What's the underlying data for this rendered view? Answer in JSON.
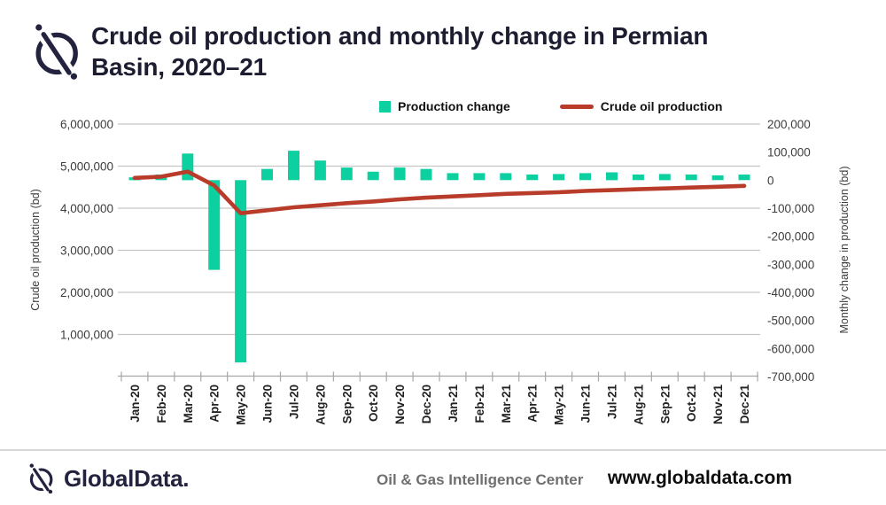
{
  "header": {
    "title_line1": "Crude oil production and monthly change in Permian",
    "title_line2": "Basin, 2020–21"
  },
  "legend": {
    "items": [
      {
        "label": "Production change",
        "marker": "green-square",
        "color": "#0dd0a1"
      },
      {
        "label": "Crude oil production",
        "marker": "red-line",
        "color": "#b93c2b"
      }
    ]
  },
  "footer": {
    "brand": "GlobalData.",
    "center_text": "Oil & Gas Intelligence Center",
    "website": "www.globaldata.com"
  },
  "colors": {
    "bar": "#0dd0a1",
    "line": "#b93c2b",
    "navy": "#23233f",
    "gridline": "#c6c6c6",
    "axis_line": "#a6a6a6",
    "axis_text": "#3d3d3d",
    "x_label_text": "#222222",
    "footer_gray": "#6f6f6f"
  },
  "chart_data": {
    "type": "bar",
    "subtype": "dual-axis bar + line combo",
    "title": "Crude oil production and monthly change in Permian Basin, 2020–21",
    "grid": true,
    "legend_position": "top",
    "categories": [
      "Jan-20",
      "Feb-20",
      "Mar-20",
      "Apr-20",
      "May-20",
      "Jun-20",
      "Jul-20",
      "Aug-20",
      "Sep-20",
      "Oct-20",
      "Nov-20",
      "Dec-20",
      "Jan-21",
      "Feb-21",
      "Mar-21",
      "Apr-21",
      "May-21",
      "Jun-21",
      "Jul-21",
      "Aug-21",
      "Sep-21",
      "Oct-21",
      "Nov-21",
      "Dec-21"
    ],
    "series": [
      {
        "name": "Production change",
        "type": "bar",
        "axis": "right",
        "color": "#0dd0a1",
        "values": [
          10000,
          20000,
          95000,
          -320000,
          -650000,
          40000,
          105000,
          70000,
          45000,
          30000,
          45000,
          40000,
          25000,
          25000,
          25000,
          20000,
          22000,
          25000,
          28000,
          20000,
          22000,
          20000,
          17000,
          20000
        ]
      },
      {
        "name": "Crude oil production",
        "type": "line",
        "axis": "left",
        "color": "#b93c2b",
        "values": [
          4720000,
          4750000,
          4870000,
          4540000,
          3880000,
          3950000,
          4020000,
          4070000,
          4120000,
          4160000,
          4210000,
          4250000,
          4280000,
          4310000,
          4340000,
          4360000,
          4380000,
          4410000,
          4430000,
          4450000,
          4470000,
          4490000,
          4510000,
          4530000
        ]
      }
    ],
    "left_axis": {
      "label": "Crude oil production (bd)",
      "min": 0,
      "max": 6000000,
      "tick_step": 1000000,
      "tick_labels": [
        "1,000,000",
        "2,000,000",
        "3,000,000",
        "4,000,000",
        "5,000,000",
        "6,000,000"
      ]
    },
    "right_axis": {
      "label": "Monthly change in production (bd)",
      "min": -700000,
      "max": 200000,
      "tick_step": 100000,
      "tick_labels": [
        "200,000",
        "100,000",
        "0",
        "-100,000",
        "-200,000",
        "-300,000",
        "-400,000",
        "-500,000",
        "-600,000",
        "-700,000"
      ]
    }
  }
}
